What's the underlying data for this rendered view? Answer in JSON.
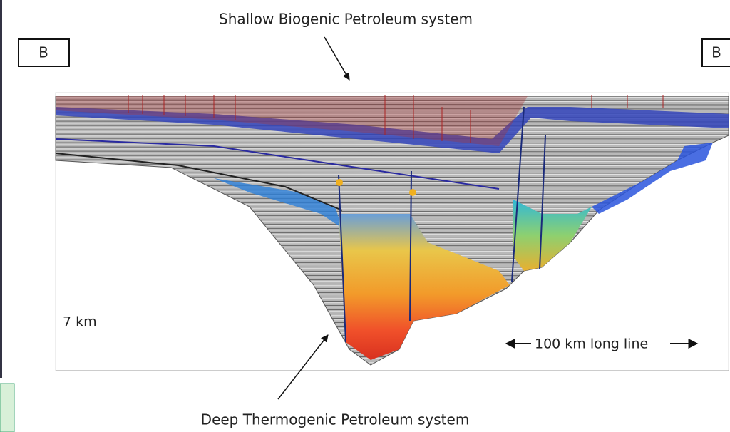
{
  "header": {
    "title": "Shallow Biogenic Petroleum system"
  },
  "labels": {
    "left_marker": "B",
    "right_marker": "B",
    "depth": "7 km",
    "length": "100 km long line"
  },
  "footer": {
    "caption": "Deep Thermogenic Petroleum system"
  }
}
